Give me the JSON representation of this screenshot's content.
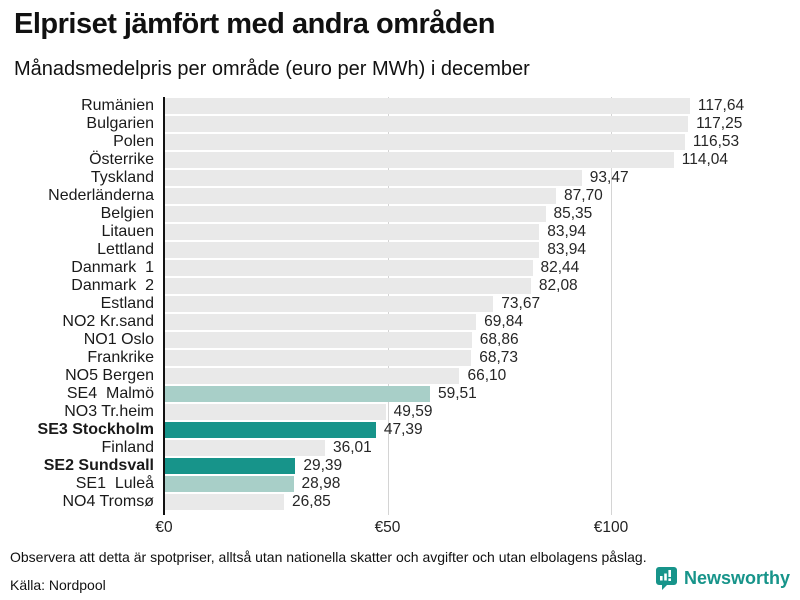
{
  "header": {
    "title": "Elpriset jämfört med andra områden",
    "subtitle": "Månadsmedelpris per område (euro per MWh) i december"
  },
  "footer": {
    "note": "Observera att detta är spotpriser, alltså utan nationella skatter och avgifter och utan elbolagens påslag.",
    "source": "Källa: Nordpool",
    "logo_text": "Newsworthy"
  },
  "colors": {
    "bar_default": "#e9e9e9",
    "bar_light_teal": "#a8cfc8",
    "bar_dark_teal": "#17948a",
    "axis": "#111111",
    "gridline": "#d4d4d4",
    "accent": "#17948a"
  },
  "chart_data": {
    "type": "bar",
    "orientation": "horizontal",
    "title": "Elpriset jämfört med andra områden",
    "subtitle": "Månadsmedelpris per område (euro per MWh) i december",
    "xlabel": "euro per MWh",
    "ylabel": "",
    "xlim": [
      0,
      142
    ],
    "grid": "vertical gridlines at tick values, drawn behind bars",
    "legend": "none",
    "ticks": [
      {
        "label": "€0",
        "value": 0
      },
      {
        "label": "€50",
        "value": 50
      },
      {
        "label": "€100",
        "value": 100
      }
    ],
    "categories": [
      "Rumänien",
      "Bulgarien",
      "Polen",
      "Österrike",
      "Tyskland",
      "Nederländerna",
      "Belgien",
      "Litauen",
      "Lettland",
      "Danmark  1",
      "Danmark  2",
      "Estland",
      "NO2 Kr.sand",
      "NO1 Oslo",
      "Frankrike",
      "NO5 Bergen",
      "SE4  Malmö",
      "NO3 Tr.heim",
      "SE3 Stockholm",
      "Finland",
      "SE2 Sundsvall",
      "SE1  Luleå",
      "NO4 Tromsø"
    ],
    "values": [
      117.64,
      117.25,
      116.53,
      114.04,
      93.47,
      87.7,
      85.35,
      83.94,
      83.94,
      82.44,
      82.08,
      73.67,
      69.84,
      68.86,
      68.73,
      66.1,
      59.51,
      49.59,
      47.39,
      36.01,
      29.39,
      28.98,
      26.85
    ],
    "value_labels": [
      "117,64",
      "117,25",
      "116,53",
      "114,04",
      "93,47",
      "87,70",
      "85,35",
      "83,94",
      "83,94",
      "82,44",
      "82,08",
      "73,67",
      "69,84",
      "68,86",
      "68,73",
      "66,10",
      "59,51",
      "49,59",
      "47,39",
      "36,01",
      "29,39",
      "28,98",
      "26,85"
    ],
    "bar_colors": [
      "default",
      "default",
      "default",
      "default",
      "default",
      "default",
      "default",
      "default",
      "default",
      "default",
      "default",
      "default",
      "default",
      "default",
      "default",
      "default",
      "light",
      "default",
      "dark",
      "default",
      "dark",
      "light",
      "default"
    ],
    "bold_categories": [
      "SE3 Stockholm",
      "SE2 Sundsvall"
    ]
  }
}
